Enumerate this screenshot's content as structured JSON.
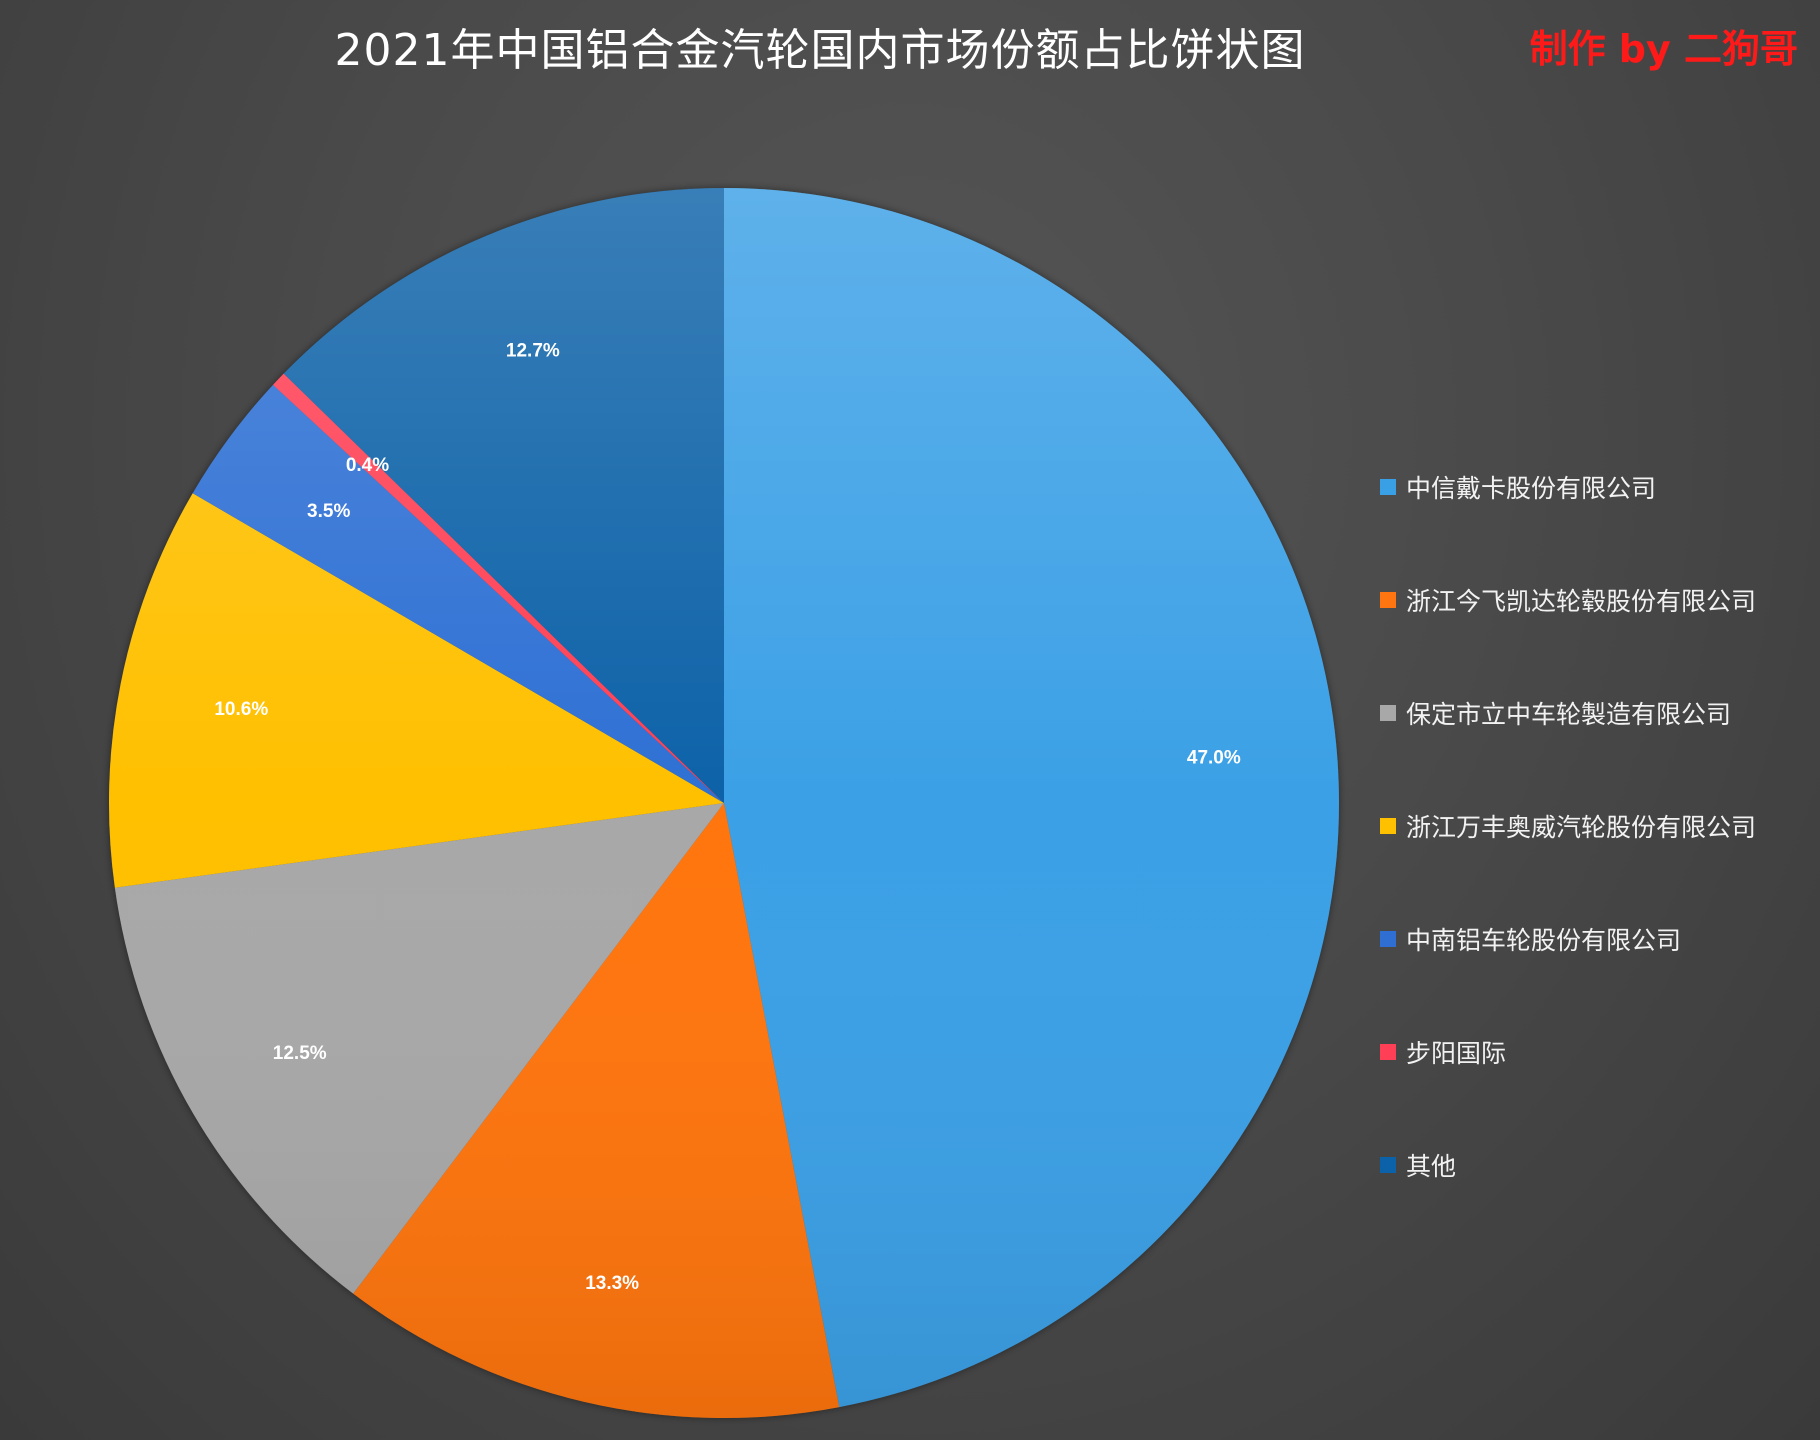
{
  "header": {
    "title": "2021年中国铝合金汽轮国内市场份额占比饼状图",
    "credit": "制作 by 二狗哥"
  },
  "chart_data": {
    "type": "pie",
    "title": "2021年中国铝合金汽轮国内市场份额占比饼状图",
    "start_angle": "12-o'clock",
    "direction": "clockwise",
    "legend_position": "right",
    "slices": [
      {
        "name": "中信戴卡股份有限公司",
        "value": 47.0,
        "label": "47.0%",
        "color": "#3aa0e6"
      },
      {
        "name": "浙江今飞凯达轮毂股份有限公司",
        "value": 13.3,
        "label": "13.3%",
        "color": "#ff7510"
      },
      {
        "name": "保定市立中车轮製造有限公司",
        "value": 12.5,
        "label": "12.5%",
        "color": "#a8a8a8"
      },
      {
        "name": "浙江万丰奥威汽轮股份有限公司",
        "value": 10.6,
        "label": "10.6%",
        "color": "#ffc000"
      },
      {
        "name": "中南铝车轮股份有限公司",
        "value": 3.5,
        "label": "3.5%",
        "color": "#2f6fd4"
      },
      {
        "name": "步阳国际",
        "value": 0.4,
        "label": "0.4%",
        "color": "#ff3f55"
      },
      {
        "name": "其他",
        "value": 12.7,
        "label": "12.7%",
        "color": "#0c62a8"
      }
    ]
  }
}
